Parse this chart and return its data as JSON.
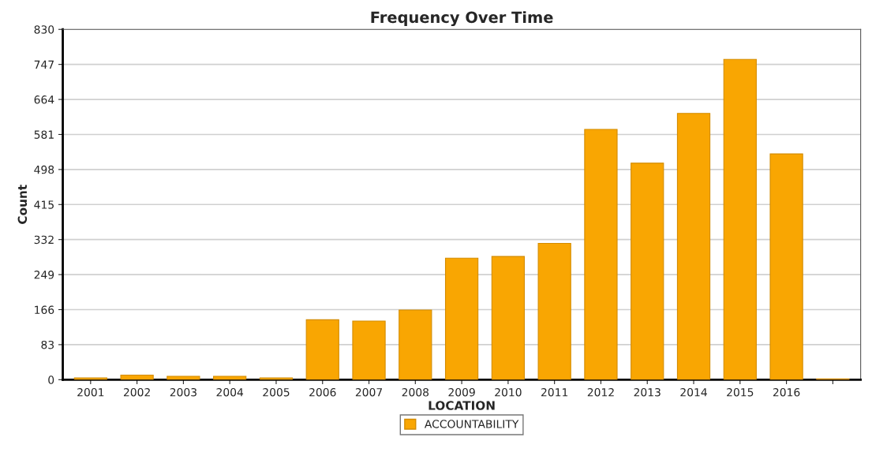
{
  "chart_data": {
    "type": "bar",
    "title": "Frequency Over Time",
    "xlabel": "LOCATION",
    "ylabel": "Count",
    "categories": [
      "2001",
      "2002",
      "2003",
      "2004",
      "2005",
      "2006",
      "2007",
      "2008",
      "2009",
      "2010",
      "2011",
      "2012",
      "2013",
      "2014",
      "2015",
      "2016",
      null
    ],
    "series": [
      {
        "name": "ACCOUNTABILITY",
        "color": "#f9a602",
        "values": [
          4,
          11,
          8,
          8,
          4,
          142,
          139,
          165,
          288,
          292,
          323,
          593,
          513,
          631,
          759,
          535,
          2
        ]
      }
    ],
    "ylim": [
      0,
      830
    ],
    "yticks": [
      0,
      83,
      166,
      249,
      332,
      415,
      498,
      581,
      664,
      747,
      830
    ],
    "grid": "y",
    "legend": "bottom"
  }
}
